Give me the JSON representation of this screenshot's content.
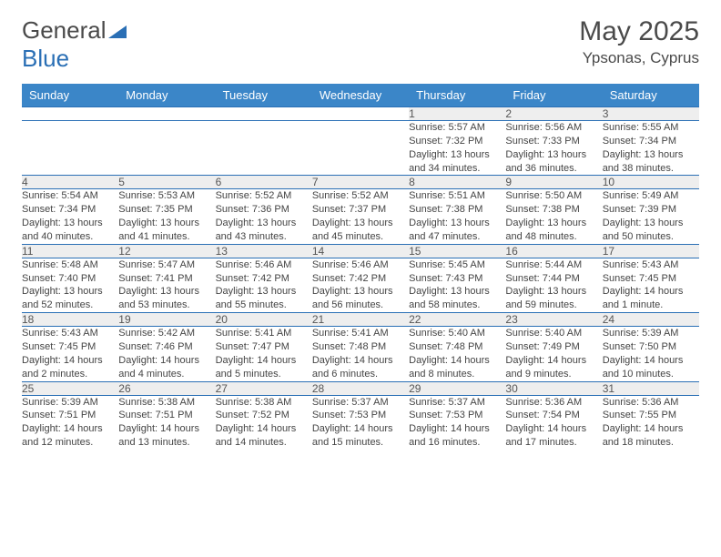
{
  "logo": {
    "part1": "General",
    "part2": "Blue"
  },
  "title": "May 2025",
  "location": "Ypsonas, Cyprus",
  "colors": {
    "header_bg": "#3b86c8",
    "header_text": "#ffffff",
    "daynum_bg": "#eeeeee",
    "rule": "#2a6fb5",
    "logo_blue": "#2a6fb5",
    "text": "#4a4a4a"
  },
  "days_of_week": [
    "Sunday",
    "Monday",
    "Tuesday",
    "Wednesday",
    "Thursday",
    "Friday",
    "Saturday"
  ],
  "weeks": [
    [
      null,
      null,
      null,
      null,
      {
        "n": "1",
        "sr": "Sunrise: 5:57 AM",
        "ss": "Sunset: 7:32 PM",
        "dl": "Daylight: 13 hours and 34 minutes."
      },
      {
        "n": "2",
        "sr": "Sunrise: 5:56 AM",
        "ss": "Sunset: 7:33 PM",
        "dl": "Daylight: 13 hours and 36 minutes."
      },
      {
        "n": "3",
        "sr": "Sunrise: 5:55 AM",
        "ss": "Sunset: 7:34 PM",
        "dl": "Daylight: 13 hours and 38 minutes."
      }
    ],
    [
      {
        "n": "4",
        "sr": "Sunrise: 5:54 AM",
        "ss": "Sunset: 7:34 PM",
        "dl": "Daylight: 13 hours and 40 minutes."
      },
      {
        "n": "5",
        "sr": "Sunrise: 5:53 AM",
        "ss": "Sunset: 7:35 PM",
        "dl": "Daylight: 13 hours and 41 minutes."
      },
      {
        "n": "6",
        "sr": "Sunrise: 5:52 AM",
        "ss": "Sunset: 7:36 PM",
        "dl": "Daylight: 13 hours and 43 minutes."
      },
      {
        "n": "7",
        "sr": "Sunrise: 5:52 AM",
        "ss": "Sunset: 7:37 PM",
        "dl": "Daylight: 13 hours and 45 minutes."
      },
      {
        "n": "8",
        "sr": "Sunrise: 5:51 AM",
        "ss": "Sunset: 7:38 PM",
        "dl": "Daylight: 13 hours and 47 minutes."
      },
      {
        "n": "9",
        "sr": "Sunrise: 5:50 AM",
        "ss": "Sunset: 7:38 PM",
        "dl": "Daylight: 13 hours and 48 minutes."
      },
      {
        "n": "10",
        "sr": "Sunrise: 5:49 AM",
        "ss": "Sunset: 7:39 PM",
        "dl": "Daylight: 13 hours and 50 minutes."
      }
    ],
    [
      {
        "n": "11",
        "sr": "Sunrise: 5:48 AM",
        "ss": "Sunset: 7:40 PM",
        "dl": "Daylight: 13 hours and 52 minutes."
      },
      {
        "n": "12",
        "sr": "Sunrise: 5:47 AM",
        "ss": "Sunset: 7:41 PM",
        "dl": "Daylight: 13 hours and 53 minutes."
      },
      {
        "n": "13",
        "sr": "Sunrise: 5:46 AM",
        "ss": "Sunset: 7:42 PM",
        "dl": "Daylight: 13 hours and 55 minutes."
      },
      {
        "n": "14",
        "sr": "Sunrise: 5:46 AM",
        "ss": "Sunset: 7:42 PM",
        "dl": "Daylight: 13 hours and 56 minutes."
      },
      {
        "n": "15",
        "sr": "Sunrise: 5:45 AM",
        "ss": "Sunset: 7:43 PM",
        "dl": "Daylight: 13 hours and 58 minutes."
      },
      {
        "n": "16",
        "sr": "Sunrise: 5:44 AM",
        "ss": "Sunset: 7:44 PM",
        "dl": "Daylight: 13 hours and 59 minutes."
      },
      {
        "n": "17",
        "sr": "Sunrise: 5:43 AM",
        "ss": "Sunset: 7:45 PM",
        "dl": "Daylight: 14 hours and 1 minute."
      }
    ],
    [
      {
        "n": "18",
        "sr": "Sunrise: 5:43 AM",
        "ss": "Sunset: 7:45 PM",
        "dl": "Daylight: 14 hours and 2 minutes."
      },
      {
        "n": "19",
        "sr": "Sunrise: 5:42 AM",
        "ss": "Sunset: 7:46 PM",
        "dl": "Daylight: 14 hours and 4 minutes."
      },
      {
        "n": "20",
        "sr": "Sunrise: 5:41 AM",
        "ss": "Sunset: 7:47 PM",
        "dl": "Daylight: 14 hours and 5 minutes."
      },
      {
        "n": "21",
        "sr": "Sunrise: 5:41 AM",
        "ss": "Sunset: 7:48 PM",
        "dl": "Daylight: 14 hours and 6 minutes."
      },
      {
        "n": "22",
        "sr": "Sunrise: 5:40 AM",
        "ss": "Sunset: 7:48 PM",
        "dl": "Daylight: 14 hours and 8 minutes."
      },
      {
        "n": "23",
        "sr": "Sunrise: 5:40 AM",
        "ss": "Sunset: 7:49 PM",
        "dl": "Daylight: 14 hours and 9 minutes."
      },
      {
        "n": "24",
        "sr": "Sunrise: 5:39 AM",
        "ss": "Sunset: 7:50 PM",
        "dl": "Daylight: 14 hours and 10 minutes."
      }
    ],
    [
      {
        "n": "25",
        "sr": "Sunrise: 5:39 AM",
        "ss": "Sunset: 7:51 PM",
        "dl": "Daylight: 14 hours and 12 minutes."
      },
      {
        "n": "26",
        "sr": "Sunrise: 5:38 AM",
        "ss": "Sunset: 7:51 PM",
        "dl": "Daylight: 14 hours and 13 minutes."
      },
      {
        "n": "27",
        "sr": "Sunrise: 5:38 AM",
        "ss": "Sunset: 7:52 PM",
        "dl": "Daylight: 14 hours and 14 minutes."
      },
      {
        "n": "28",
        "sr": "Sunrise: 5:37 AM",
        "ss": "Sunset: 7:53 PM",
        "dl": "Daylight: 14 hours and 15 minutes."
      },
      {
        "n": "29",
        "sr": "Sunrise: 5:37 AM",
        "ss": "Sunset: 7:53 PM",
        "dl": "Daylight: 14 hours and 16 minutes."
      },
      {
        "n": "30",
        "sr": "Sunrise: 5:36 AM",
        "ss": "Sunset: 7:54 PM",
        "dl": "Daylight: 14 hours and 17 minutes."
      },
      {
        "n": "31",
        "sr": "Sunrise: 5:36 AM",
        "ss": "Sunset: 7:55 PM",
        "dl": "Daylight: 14 hours and 18 minutes."
      }
    ]
  ]
}
